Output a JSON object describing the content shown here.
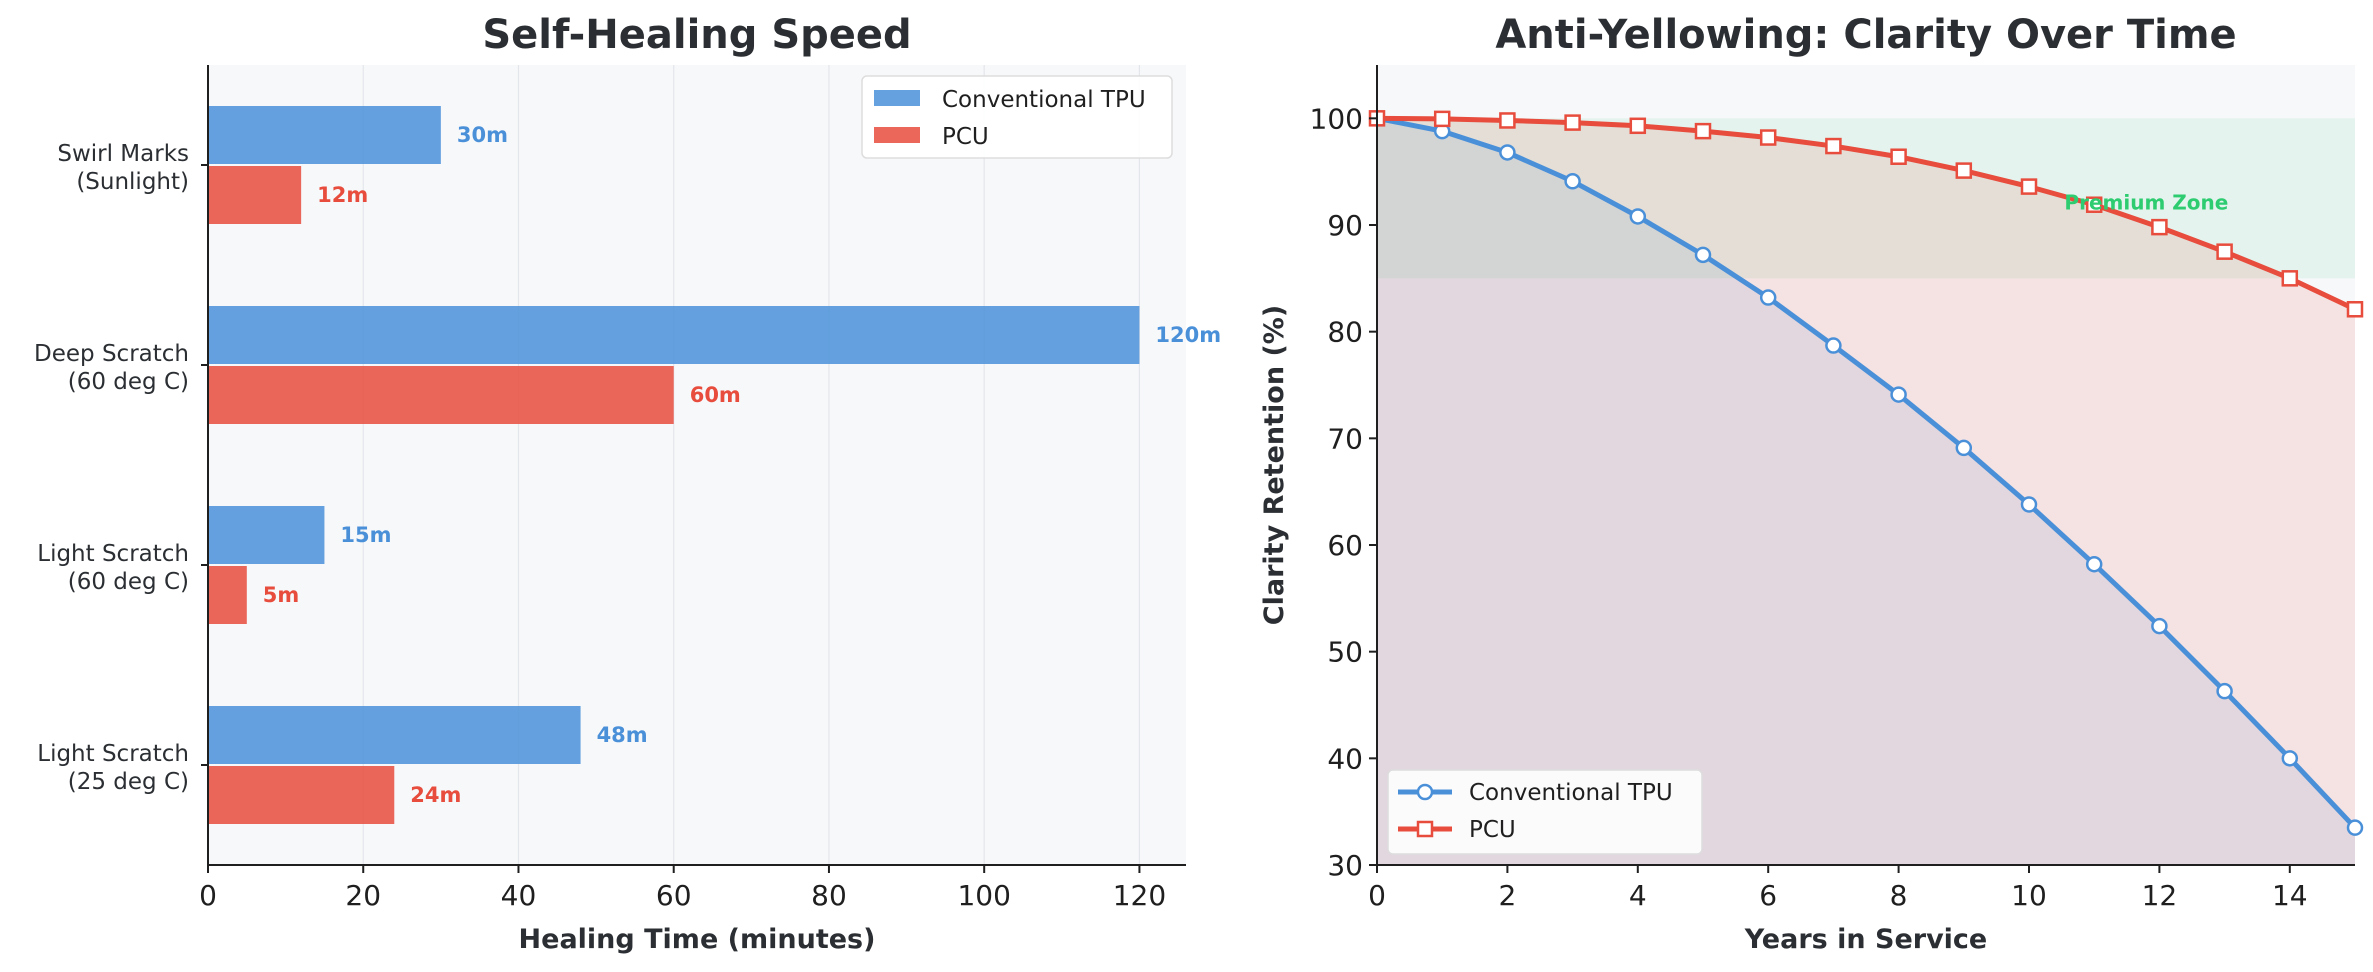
{
  "colors": {
    "conventional": "#4a90d9",
    "pcu": "#e74c3c",
    "premium": "#2ecc71",
    "panel_bg": "#f7f8fa"
  },
  "chart_data": [
    {
      "type": "bar",
      "orientation": "horizontal",
      "title": "Self-Healing Speed",
      "xlabel": "Healing Time (minutes)",
      "ylabel": "",
      "categories": [
        "Light Scratch\n(25 deg C)",
        "Light Scratch\n(60 deg C)",
        "Deep Scratch\n(60 deg C)",
        "Swirl Marks\n(Sunlight)"
      ],
      "series": [
        {
          "name": "Conventional TPU",
          "values": [
            48,
            15,
            120,
            30
          ],
          "labels": [
            "48m",
            "15m",
            "120m",
            "30m"
          ],
          "color": "#4a90d9"
        },
        {
          "name": "PCU",
          "values": [
            24,
            5,
            60,
            12
          ],
          "labels": [
            "24m",
            "5m",
            "60m",
            "12m"
          ],
          "color": "#e74c3c"
        }
      ],
      "xlim": [
        0,
        126
      ],
      "xticks": [
        0,
        20,
        40,
        60,
        80,
        100,
        120
      ],
      "grid": "vertical",
      "legend": "top-right"
    },
    {
      "type": "line",
      "title": "Anti-Yellowing: Clarity Over Time",
      "xlabel": "Years in Service",
      "ylabel": "Clarity Retention (%)",
      "x": [
        0,
        1,
        2,
        3,
        4,
        5,
        6,
        7,
        8,
        9,
        10,
        11,
        12,
        13,
        14,
        15
      ],
      "series": [
        {
          "name": "Conventional TPU",
          "values": [
            100,
            98.8,
            96.8,
            94.1,
            90.8,
            87.2,
            83.2,
            78.7,
            74.1,
            69.1,
            63.8,
            58.2,
            52.4,
            46.3,
            40.0,
            33.5
          ],
          "color": "#4a90d9",
          "marker": "circle"
        },
        {
          "name": "PCU",
          "values": [
            100,
            99.95,
            99.8,
            99.6,
            99.3,
            98.8,
            98.2,
            97.4,
            96.4,
            95.1,
            93.6,
            91.9,
            89.8,
            87.5,
            85.0,
            82.1
          ],
          "color": "#e74c3c",
          "marker": "square"
        }
      ],
      "xlim": [
        0,
        15
      ],
      "ylim": [
        30,
        105
      ],
      "xticks": [
        0,
        2,
        4,
        6,
        8,
        10,
        12,
        14
      ],
      "yticks": [
        30,
        40,
        50,
        60,
        70,
        80,
        90,
        100
      ],
      "annotations": [
        {
          "text": "Premium Zone",
          "x": 11.8,
          "y": 92
        }
      ],
      "premium_zone": [
        85,
        100
      ],
      "legend": "bottom-left"
    }
  ]
}
